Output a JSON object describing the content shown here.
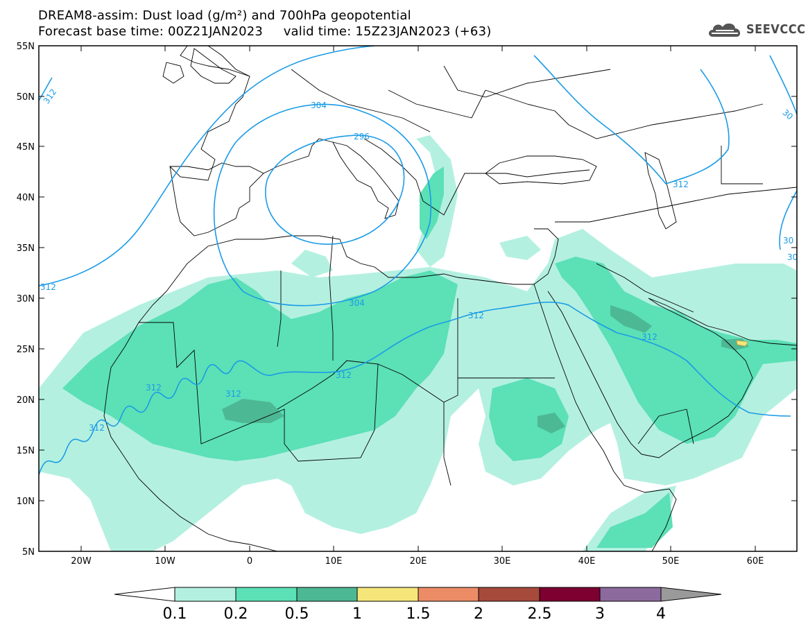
{
  "title": {
    "line1": "DREAM8-assim: Dust load (g/m²) and 700hPa geopotential",
    "line2": "Forecast base time: 00Z21JAN2023     valid time: 15Z23JAN2023 (+63)"
  },
  "logo": {
    "text": "SEEVCCC",
    "icon": "cloud-icon"
  },
  "map": {
    "lat_range": [
      5,
      55
    ],
    "lon_range": [
      -25,
      65
    ],
    "lat_labels": [
      "55N",
      "50N",
      "45N",
      "40N",
      "35N",
      "30N",
      "25N",
      "20N",
      "15N",
      "10N",
      "5N"
    ],
    "lon_labels": [
      "20W",
      "10W",
      "0",
      "10E",
      "20E",
      "30E",
      "40E",
      "50E",
      "60E"
    ],
    "contour_color": "#1a9be6",
    "contour_labels": [
      "312",
      "304",
      "296",
      "304",
      "312",
      "312",
      "312",
      "312",
      "312",
      "312",
      "312",
      "312",
      "30",
      "30",
      "30"
    ],
    "colors": {
      "c01": "#b4f0e0",
      "c02": "#5ce0b6",
      "c05": "#4db894"
    }
  },
  "colorbar": {
    "labels": [
      "0.1",
      "0.2",
      "0.5",
      "1",
      "1.5",
      "2",
      "2.5",
      "3",
      "4"
    ],
    "colors": [
      "#ffffff",
      "#b4f0e0",
      "#5ce0b6",
      "#4db894",
      "#f5e67a",
      "#eb8c66",
      "#a64a3c",
      "#7c0030",
      "#8c6a9e",
      "#9a9a9a"
    ]
  }
}
